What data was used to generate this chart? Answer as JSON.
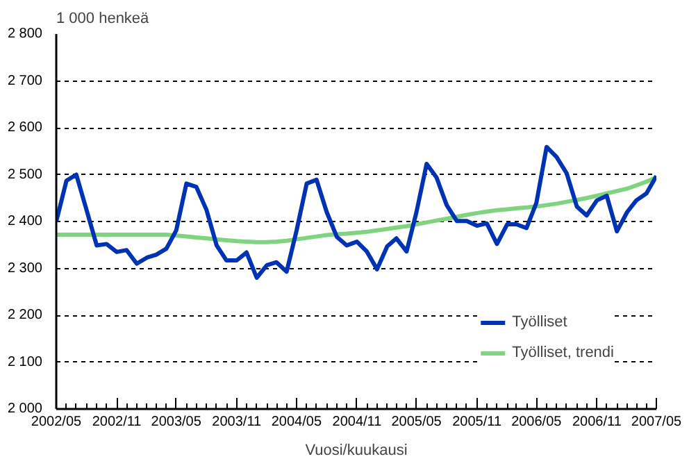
{
  "chart_data": {
    "type": "line",
    "ylabel": "1 000 henkeä",
    "xlabel": "Vuosi/kuukausi",
    "x": [
      "2002-05",
      "2002-06",
      "2002-07",
      "2002-08",
      "2002-09",
      "2002-10",
      "2002-11",
      "2002-12",
      "2003-01",
      "2003-02",
      "2003-03",
      "2003-04",
      "2003-05",
      "2003-06",
      "2003-07",
      "2003-08",
      "2003-09",
      "2003-10",
      "2003-11",
      "2003-12",
      "2004-01",
      "2004-02",
      "2004-03",
      "2004-04",
      "2004-05",
      "2004-06",
      "2004-07",
      "2004-08",
      "2004-09",
      "2004-10",
      "2004-11",
      "2004-12",
      "2005-01",
      "2005-02",
      "2005-03",
      "2005-04",
      "2005-05",
      "2005-06",
      "2005-07",
      "2005-08",
      "2005-09",
      "2005-10",
      "2005-11",
      "2005-12",
      "2006-01",
      "2006-02",
      "2006-03",
      "2006-04",
      "2006-05",
      "2006-06",
      "2006-07",
      "2006-08",
      "2006-09",
      "2006-10",
      "2006-11",
      "2006-12",
      "2007-01",
      "2007-02",
      "2007-03",
      "2007-04",
      "2007-05"
    ],
    "series": [
      {
        "name": "Työlliset",
        "color": "#0033b4",
        "values": [
          2400,
          2487,
          2500,
          2425,
          2349,
          2352,
          2335,
          2339,
          2310,
          2323,
          2329,
          2342,
          2381,
          2481,
          2474,
          2425,
          2349,
          2317,
          2317,
          2334,
          2280,
          2307,
          2313,
          2293,
          2380,
          2481,
          2489,
          2420,
          2367,
          2349,
          2357,
          2336,
          2298,
          2347,
          2364,
          2336,
          2420,
          2523,
          2494,
          2435,
          2401,
          2401,
          2391,
          2396,
          2352,
          2394,
          2394,
          2386,
          2440,
          2559,
          2538,
          2503,
          2432,
          2413,
          2445,
          2455,
          2379,
          2420,
          2445,
          2460,
          2497
        ]
      },
      {
        "name": "Työlliset, trendi",
        "color": "#80d480",
        "values": [
          2372,
          2372,
          2372,
          2372,
          2372,
          2372,
          2372,
          2372,
          2372,
          2372,
          2372,
          2372,
          2370,
          2368,
          2366,
          2364,
          2362,
          2360,
          2358,
          2357,
          2356,
          2356,
          2357,
          2359,
          2362,
          2365,
          2368,
          2371,
          2373,
          2374,
          2376,
          2378,
          2381,
          2384,
          2387,
          2390,
          2394,
          2398,
          2402,
          2406,
          2410,
          2414,
          2418,
          2421,
          2424,
          2426,
          2428,
          2430,
          2432,
          2435,
          2438,
          2442,
          2446,
          2450,
          2455,
          2460,
          2465,
          2470,
          2477,
          2485,
          2494
        ]
      }
    ],
    "ylim": [
      2000,
      2800
    ],
    "yticks": [
      {
        "value": 2000,
        "label": "2 000"
      },
      {
        "value": 2100,
        "label": "2 100"
      },
      {
        "value": 2200,
        "label": "2 200"
      },
      {
        "value": 2300,
        "label": "2 300"
      },
      {
        "value": 2400,
        "label": "2 400"
      },
      {
        "value": 2500,
        "label": "2 500"
      },
      {
        "value": 2600,
        "label": "2 600"
      },
      {
        "value": 2700,
        "label": "2 700"
      },
      {
        "value": 2800,
        "label": "2 800"
      }
    ],
    "xlim": [
      "2002-05",
      "2007-05"
    ],
    "xticks": [
      {
        "value": "2002-05",
        "label": "2002/05"
      },
      {
        "value": "2002-06",
        "label": null
      },
      {
        "value": "2002-07",
        "label": null
      },
      {
        "value": "2002-08",
        "label": null
      },
      {
        "value": "2002-09",
        "label": null
      },
      {
        "value": "2002-10",
        "label": null
      },
      {
        "value": "2002-11",
        "label": "2002/11"
      },
      {
        "value": "2002-12",
        "label": null
      },
      {
        "value": "2003-01",
        "label": null
      },
      {
        "value": "2003-02",
        "label": null
      },
      {
        "value": "2003-03",
        "label": null
      },
      {
        "value": "2003-04",
        "label": null
      },
      {
        "value": "2003-05",
        "label": "2003/05"
      },
      {
        "value": "2003-06",
        "label": null
      },
      {
        "value": "2003-07",
        "label": null
      },
      {
        "value": "2003-08",
        "label": null
      },
      {
        "value": "2003-09",
        "label": null
      },
      {
        "value": "2003-10",
        "label": null
      },
      {
        "value": "2003-11",
        "label": "2003/11"
      },
      {
        "value": "2003-12",
        "label": null
      },
      {
        "value": "2004-01",
        "label": null
      },
      {
        "value": "2004-02",
        "label": null
      },
      {
        "value": "2004-03",
        "label": null
      },
      {
        "value": "2004-04",
        "label": null
      },
      {
        "value": "2004-05",
        "label": "2004/05"
      },
      {
        "value": "2004-06",
        "label": null
      },
      {
        "value": "2004-07",
        "label": null
      },
      {
        "value": "2004-08",
        "label": null
      },
      {
        "value": "2004-09",
        "label": null
      },
      {
        "value": "2004-10",
        "label": null
      },
      {
        "value": "2004-11",
        "label": "2004/11"
      },
      {
        "value": "2004-12",
        "label": null
      },
      {
        "value": "2005-01",
        "label": null
      },
      {
        "value": "2005-02",
        "label": null
      },
      {
        "value": "2005-03",
        "label": null
      },
      {
        "value": "2005-04",
        "label": null
      },
      {
        "value": "2005-05",
        "label": "2005/05"
      },
      {
        "value": "2005-06",
        "label": null
      },
      {
        "value": "2005-07",
        "label": null
      },
      {
        "value": "2005-08",
        "label": null
      },
      {
        "value": "2005-09",
        "label": null
      },
      {
        "value": "2005-10",
        "label": null
      },
      {
        "value": "2005-11",
        "label": "2005/11"
      },
      {
        "value": "2005-12",
        "label": null
      },
      {
        "value": "2006-01",
        "label": null
      },
      {
        "value": "2006-02",
        "label": null
      },
      {
        "value": "2006-03",
        "label": null
      },
      {
        "value": "2006-04",
        "label": null
      },
      {
        "value": "2006-05",
        "label": "2006/05"
      },
      {
        "value": "2006-06",
        "label": null
      },
      {
        "value": "2006-07",
        "label": null
      },
      {
        "value": "2006-08",
        "label": null
      },
      {
        "value": "2006-09",
        "label": null
      },
      {
        "value": "2006-10",
        "label": null
      },
      {
        "value": "2006-11",
        "label": "2006/11"
      },
      {
        "value": "2006-12",
        "label": null
      },
      {
        "value": "2007-01",
        "label": null
      },
      {
        "value": "2007-02",
        "label": null
      },
      {
        "value": "2007-03",
        "label": null
      },
      {
        "value": "2007-04",
        "label": null
      },
      {
        "value": "2007-05",
        "label": "2007/05"
      }
    ],
    "grid": "y",
    "legend": "bottom right",
    "marker": "none",
    "line_style": "solid"
  }
}
